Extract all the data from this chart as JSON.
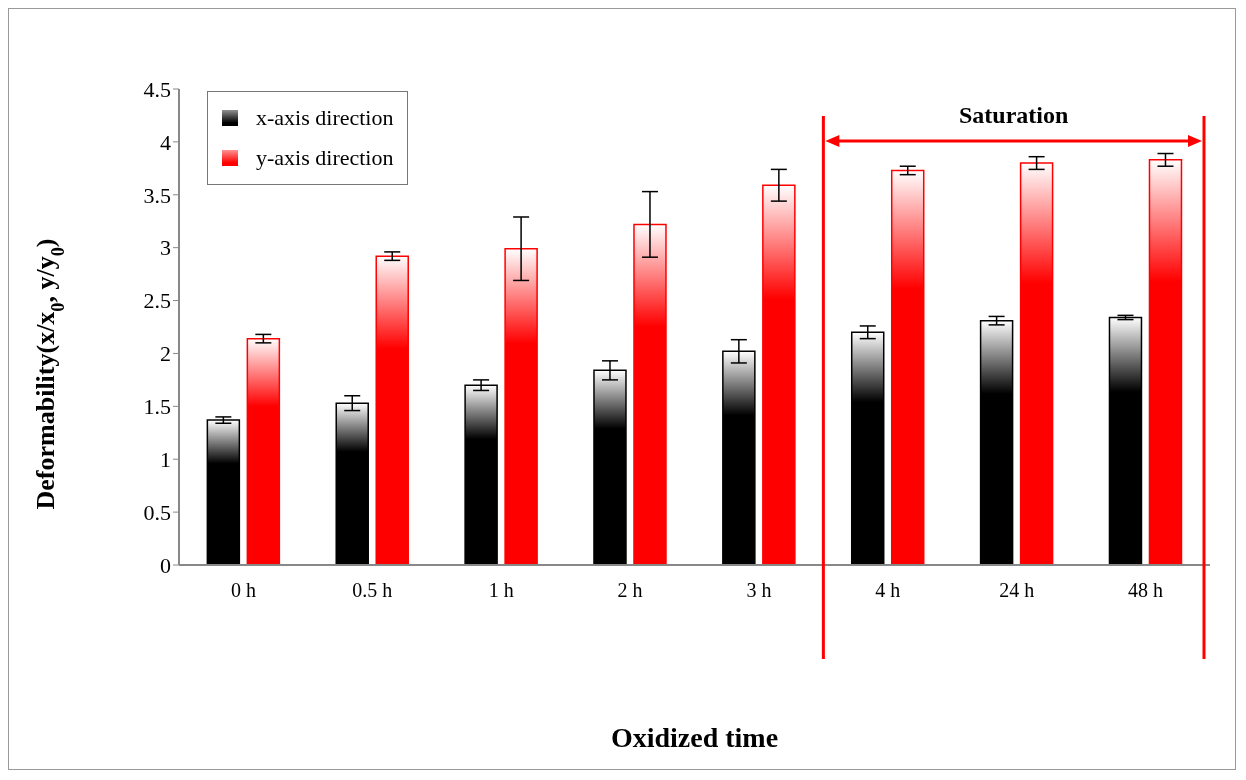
{
  "chart_data": {
    "type": "bar",
    "xlabel": "Oxidized time",
    "ylabel": "Deformability(x/x$_{0}$, y/y$_{0}$)",
    "categories": [
      "0 h",
      "0.5 h",
      "1 h",
      "2 h",
      "3 h",
      "4 h",
      "24 h",
      "48 h"
    ],
    "series": [
      {
        "name": "x-axis direction",
        "color": "#000000",
        "values": [
          1.37,
          1.53,
          1.7,
          1.84,
          2.02,
          2.2,
          2.31,
          2.34
        ],
        "errors": [
          0.03,
          0.07,
          0.05,
          0.09,
          0.11,
          0.06,
          0.04,
          0.02
        ]
      },
      {
        "name": "y-axis direction",
        "color": "#ff0000",
        "values": [
          2.14,
          2.92,
          2.99,
          3.22,
          3.59,
          3.73,
          3.8,
          3.83
        ],
        "errors": [
          0.04,
          0.04,
          0.3,
          0.31,
          0.15,
          0.04,
          0.06,
          0.06
        ]
      }
    ],
    "ylim": [
      0,
      4.5
    ],
    "yticks": [
      0,
      0.5,
      1,
      1.5,
      2,
      2.5,
      3,
      3.5,
      4,
      4.5
    ],
    "annotations": [
      "Saturation"
    ],
    "grid": false,
    "legend": "top left"
  }
}
